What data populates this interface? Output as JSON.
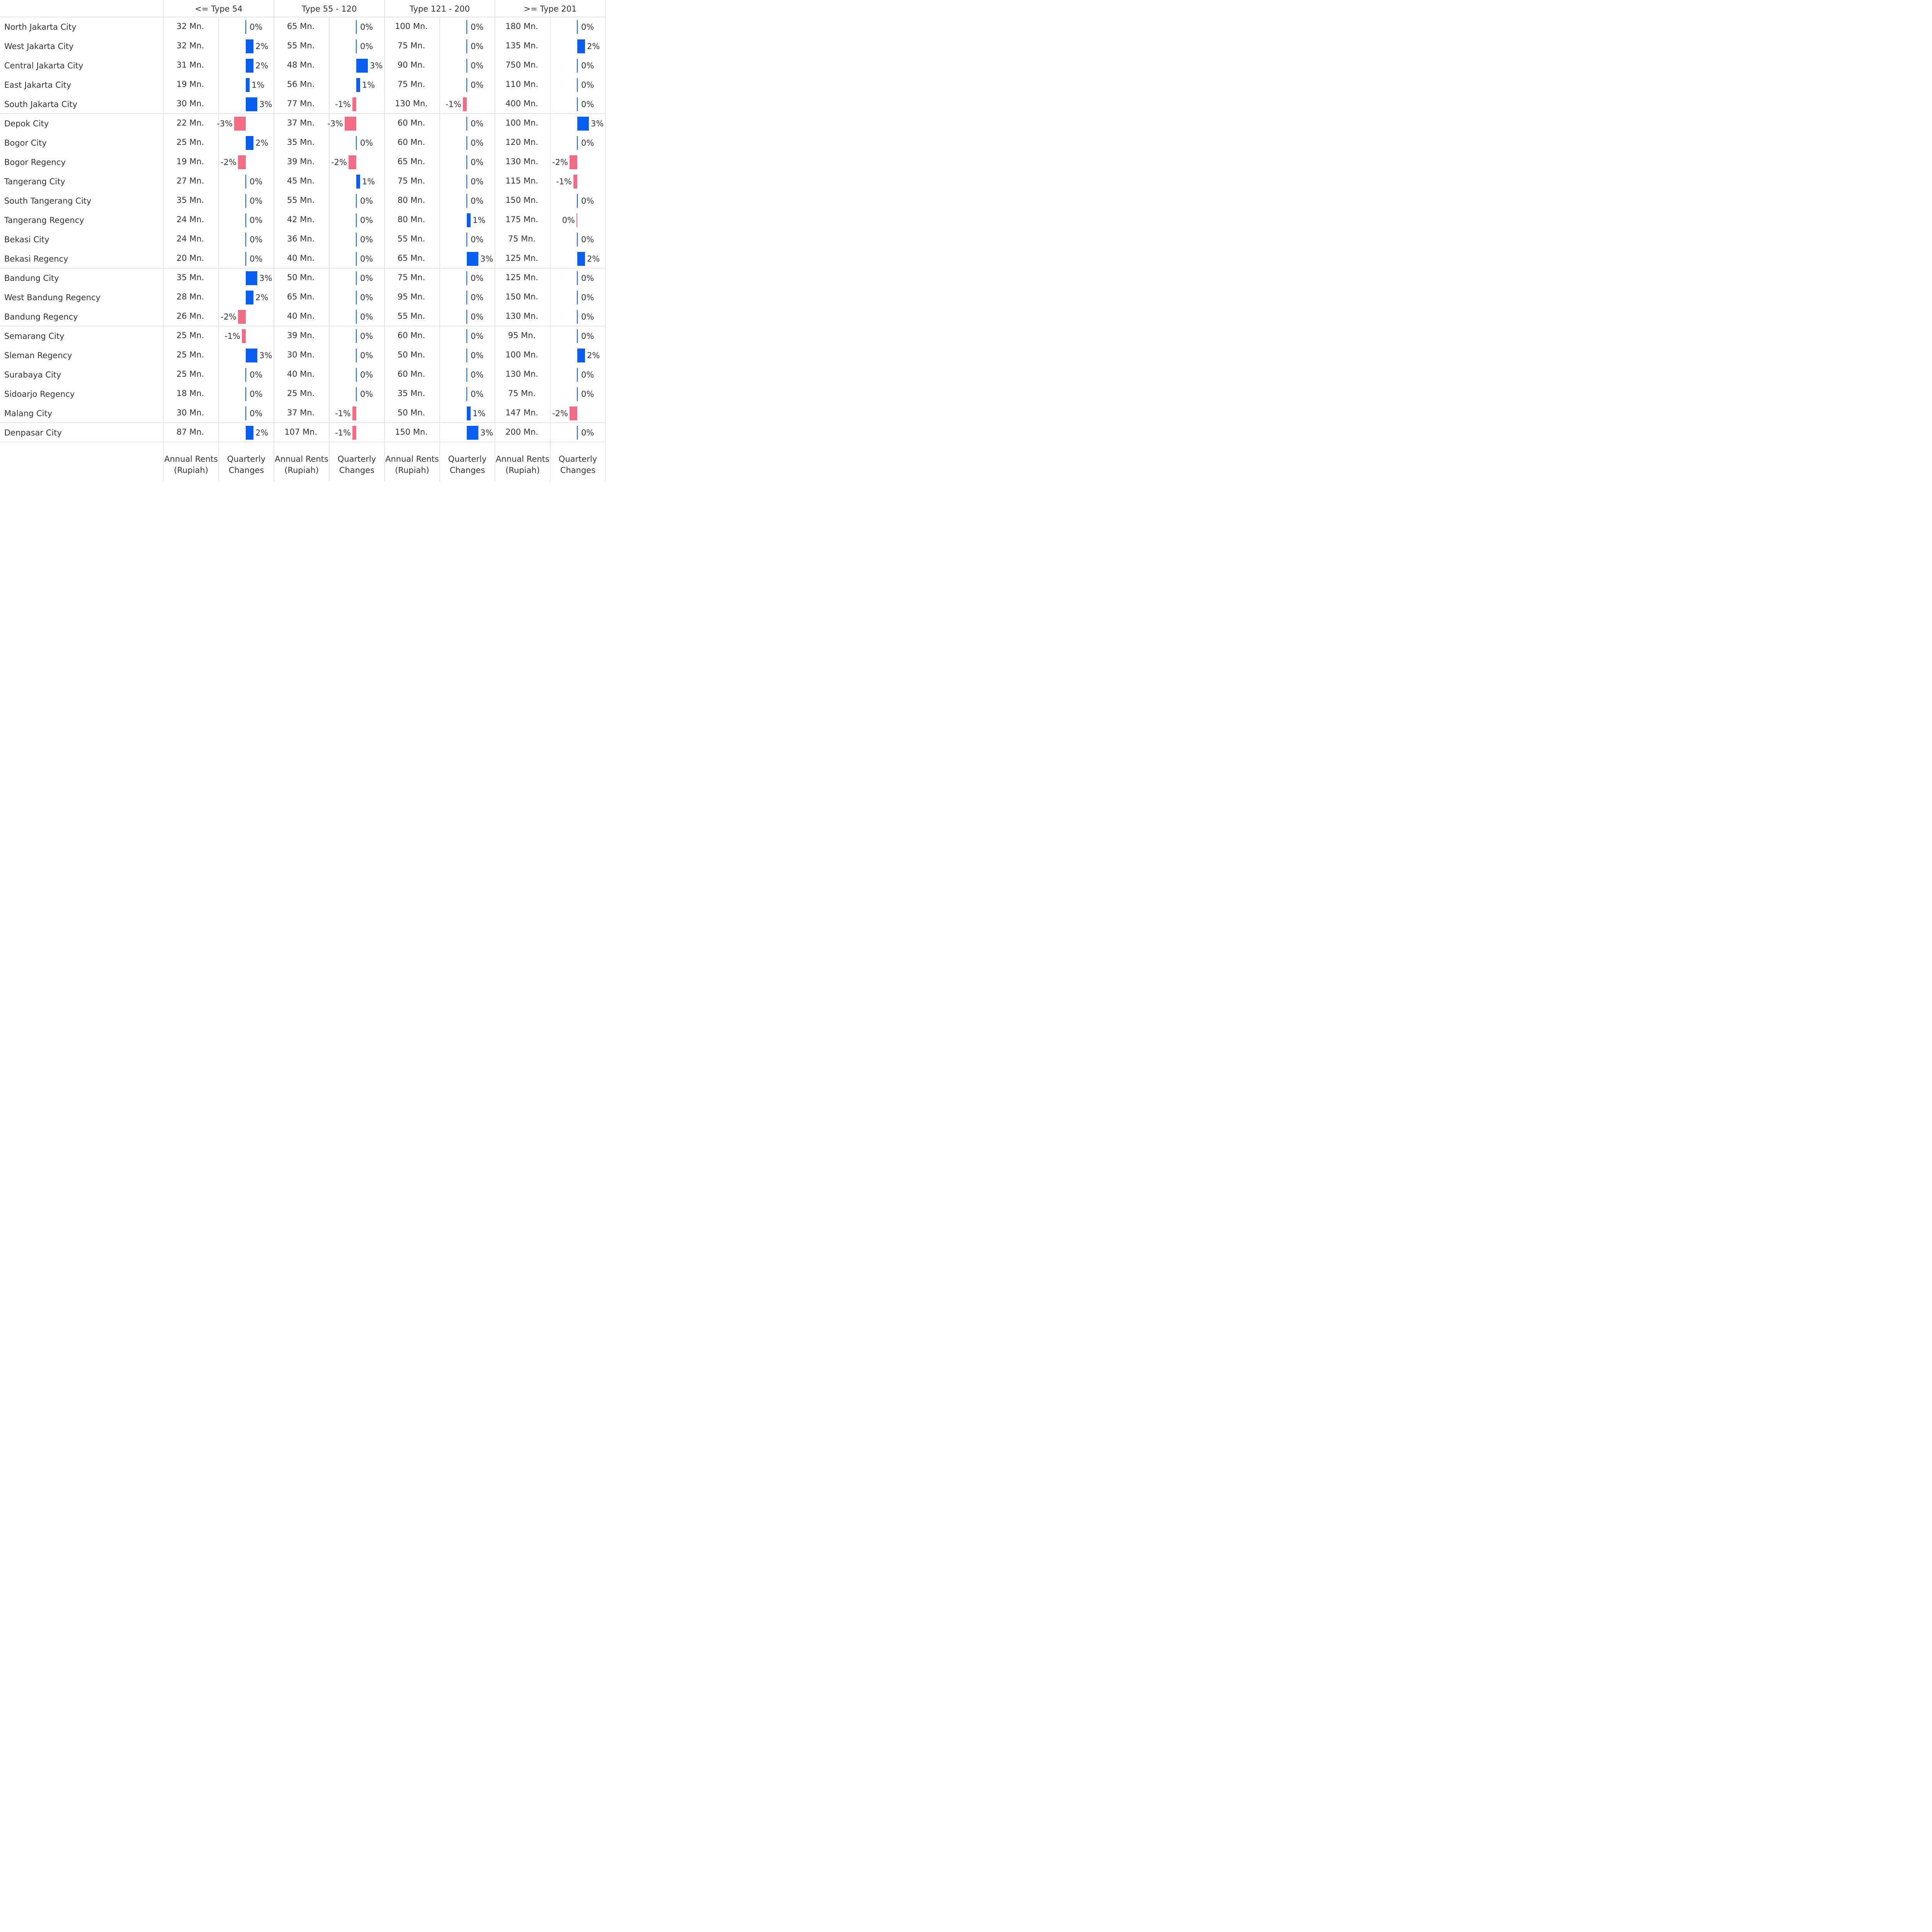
{
  "chart_data": {
    "type": "table",
    "title": "",
    "column_groups": [
      ">= Type 201"
    ],
    "group_labels": [
      "<= Type 54",
      "Type 55 - 120",
      "Type 121 - 200",
      ">= Type 201"
    ],
    "sub_columns": [
      "Annual Rents (Rupiah)",
      "Quarterly Changes"
    ],
    "sub_column_lines": [
      [
        "Annual Rents",
        "(Rupiah)"
      ],
      [
        "Quarterly",
        "Changes"
      ]
    ],
    "row_groups": [
      [
        "North Jakarta City",
        "West Jakarta City",
        "Central Jakarta City",
        "East Jakarta City",
        "South Jakarta City"
      ],
      [
        "Depok City",
        "Bogor City",
        "Bogor Regency",
        "Tangerang City",
        "South Tangerang City",
        "Tangerang Regency",
        "Bekasi City",
        "Bekasi Regency"
      ],
      [
        "Bandung City",
        "West Bandung Regency",
        "Bandung Regency"
      ],
      [
        "Semarang City",
        "Sleman Regency",
        "Surabaya City",
        "Sidoarjo Regency",
        "Malang City"
      ],
      [
        "Denpasar City"
      ]
    ],
    "rows": [
      {
        "name": "North Jakarta City",
        "rents": [
          "32 Mn.",
          "65 Mn.",
          "100 Mn.",
          "180 Mn."
        ],
        "changes": [
          0,
          0,
          0,
          0
        ],
        "change_labels": [
          "0%",
          "0%",
          "0%",
          "0%"
        ]
      },
      {
        "name": "West Jakarta City",
        "rents": [
          "32 Mn.",
          "55 Mn.",
          "75 Mn.",
          "135 Mn."
        ],
        "changes": [
          2,
          0,
          0,
          2
        ],
        "change_labels": [
          "2%",
          "0%",
          "0%",
          "2%"
        ]
      },
      {
        "name": "Central Jakarta City",
        "rents": [
          "31 Mn.",
          "48 Mn.",
          "90 Mn.",
          "750 Mn."
        ],
        "changes": [
          2,
          3,
          0,
          0
        ],
        "change_labels": [
          "2%",
          "3%",
          "0%",
          "0%"
        ]
      },
      {
        "name": "East Jakarta City",
        "rents": [
          "19 Mn.",
          "56 Mn.",
          "75 Mn.",
          "110 Mn."
        ],
        "changes": [
          1,
          1,
          0,
          0
        ],
        "change_labels": [
          "1%",
          "1%",
          "0%",
          "0%"
        ]
      },
      {
        "name": "South Jakarta City",
        "rents": [
          "30 Mn.",
          "77 Mn.",
          "130 Mn.",
          "400 Mn."
        ],
        "changes": [
          3,
          -1,
          -1,
          0
        ],
        "change_labels": [
          "3%",
          "-1%",
          "-1%",
          "0%"
        ]
      },
      {
        "name": "Depok City",
        "rents": [
          "22 Mn.",
          "37 Mn.",
          "60 Mn.",
          "100 Mn."
        ],
        "changes": [
          -3,
          -3,
          0,
          3
        ],
        "change_labels": [
          "-3%",
          "-3%",
          "0%",
          "3%"
        ]
      },
      {
        "name": "Bogor City",
        "rents": [
          "25 Mn.",
          "35 Mn.",
          "60 Mn.",
          "120 Mn."
        ],
        "changes": [
          2,
          0,
          0,
          0
        ],
        "change_labels": [
          "2%",
          "0%",
          "0%",
          "0%"
        ]
      },
      {
        "name": "Bogor Regency",
        "rents": [
          "19 Mn.",
          "39 Mn.",
          "65 Mn.",
          "130 Mn."
        ],
        "changes": [
          -2,
          -2,
          0,
          -2
        ],
        "change_labels": [
          "-2%",
          "-2%",
          "0%",
          "-2%"
        ]
      },
      {
        "name": "Tangerang City",
        "rents": [
          "27 Mn.",
          "45 Mn.",
          "75 Mn.",
          "115 Mn."
        ],
        "changes": [
          0,
          1,
          0,
          -1
        ],
        "change_labels": [
          "0%",
          "1%",
          "0%",
          "-1%"
        ]
      },
      {
        "name": "South Tangerang City",
        "rents": [
          "35 Mn.",
          "55 Mn.",
          "80 Mn.",
          "150 Mn."
        ],
        "changes": [
          0,
          0,
          0,
          0
        ],
        "change_labels": [
          "0%",
          "0%",
          "0%",
          "0%"
        ]
      },
      {
        "name": "Tangerang Regency",
        "rents": [
          "24 Mn.",
          "42 Mn.",
          "80 Mn.",
          "175 Mn."
        ],
        "changes": [
          0,
          0,
          1,
          -0.1
        ],
        "change_labels": [
          "0%",
          "0%",
          "1%",
          "0%"
        ]
      },
      {
        "name": "Bekasi City",
        "rents": [
          "24 Mn.",
          "36 Mn.",
          "55 Mn.",
          "75 Mn."
        ],
        "changes": [
          0,
          0,
          0,
          0
        ],
        "change_labels": [
          "0%",
          "0%",
          "0%",
          "0%"
        ]
      },
      {
        "name": "Bekasi Regency",
        "rents": [
          "20 Mn.",
          "40 Mn.",
          "65 Mn.",
          "125 Mn."
        ],
        "changes": [
          0,
          0,
          3,
          2
        ],
        "change_labels": [
          "0%",
          "0%",
          "3%",
          "2%"
        ]
      },
      {
        "name": "Bandung City",
        "rents": [
          "35 Mn.",
          "50 Mn.",
          "75 Mn.",
          "125 Mn."
        ],
        "changes": [
          3,
          0,
          0,
          0
        ],
        "change_labels": [
          "3%",
          "0%",
          "0%",
          "0%"
        ]
      },
      {
        "name": "West Bandung Regency",
        "rents": [
          "28 Mn.",
          "65 Mn.",
          "95 Mn.",
          "150 Mn."
        ],
        "changes": [
          2,
          0,
          0,
          0
        ],
        "change_labels": [
          "2%",
          "0%",
          "0%",
          "0%"
        ]
      },
      {
        "name": "Bandung Regency",
        "rents": [
          "26 Mn.",
          "40 Mn.",
          "55 Mn.",
          "130 Mn."
        ],
        "changes": [
          -2,
          0,
          0,
          0
        ],
        "change_labels": [
          "-2%",
          "0%",
          "0%",
          "0%"
        ]
      },
      {
        "name": "Semarang City",
        "rents": [
          "25 Mn.",
          "39 Mn.",
          "60 Mn.",
          "95 Mn."
        ],
        "changes": [
          -1,
          0,
          0,
          0
        ],
        "change_labels": [
          "-1%",
          "0%",
          "0%",
          "0%"
        ]
      },
      {
        "name": "Sleman Regency",
        "rents": [
          "25 Mn.",
          "30 Mn.",
          "50 Mn.",
          "100 Mn."
        ],
        "changes": [
          3,
          0,
          0,
          2
        ],
        "change_labels": [
          "3%",
          "0%",
          "0%",
          "2%"
        ]
      },
      {
        "name": "Surabaya City",
        "rents": [
          "25 Mn.",
          "40 Mn.",
          "60 Mn.",
          "130 Mn."
        ],
        "changes": [
          0,
          0,
          0,
          0
        ],
        "change_labels": [
          "0%",
          "0%",
          "0%",
          "0%"
        ]
      },
      {
        "name": "Sidoarjo Regency",
        "rents": [
          "18 Mn.",
          "25 Mn.",
          "35 Mn.",
          "75 Mn."
        ],
        "changes": [
          0,
          0,
          0,
          0
        ],
        "change_labels": [
          "0%",
          "0%",
          "0%",
          "0%"
        ]
      },
      {
        "name": "Malang City",
        "rents": [
          "30 Mn.",
          "37 Mn.",
          "50 Mn.",
          "147 Mn."
        ],
        "changes": [
          0,
          -1,
          1,
          -2
        ],
        "change_labels": [
          "0%",
          "-1%",
          "1%",
          "-2%"
        ]
      },
      {
        "name": "Denpasar City",
        "rents": [
          "87 Mn.",
          "107 Mn.",
          "150 Mn.",
          "200 Mn."
        ],
        "changes": [
          2,
          -1,
          3,
          0
        ],
        "change_labels": [
          "2%",
          "-1%",
          "3%",
          "0%"
        ]
      }
    ],
    "colors": {
      "positive": "#0a5ff0",
      "negative": "#f26b85",
      "zero_line": "#0a5ff0",
      "grid": "#cccccc",
      "text": "#333333"
    }
  }
}
